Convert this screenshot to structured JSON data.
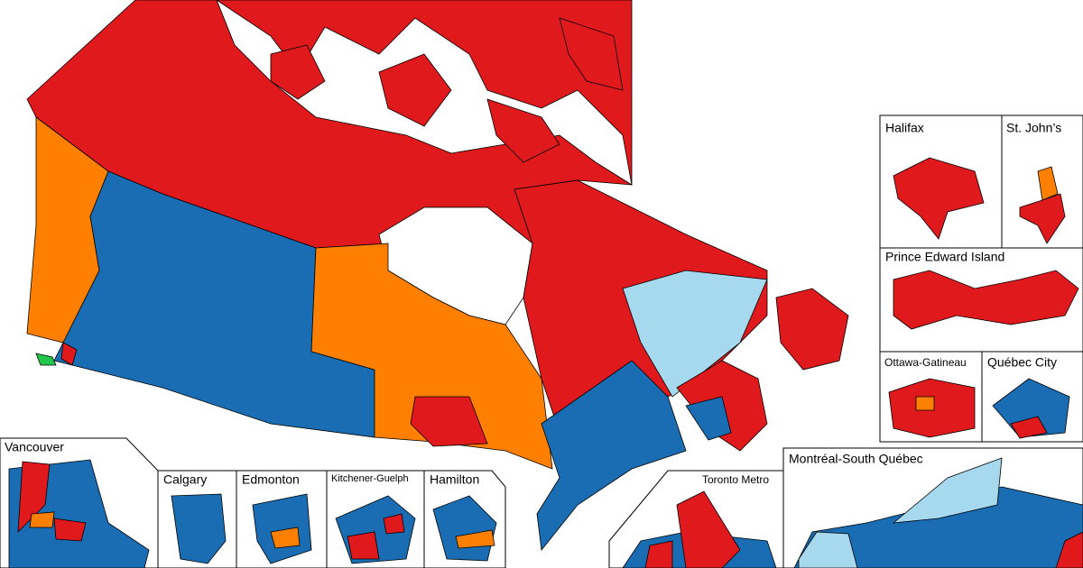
{
  "insets": {
    "vancouver": "Vancouver",
    "calgary": "Calgary",
    "edmonton": "Edmonton",
    "kitchener_guelph": "Kitchener-Guelph",
    "hamilton": "Hamilton",
    "toronto_metro": "Toronto Metro",
    "montreal": "Montréal-South Québec",
    "halifax": "Halifax",
    "st_johns": "St. John’s",
    "pei": "Prince Edward Island",
    "ottawa_gatineau": "Ottawa-Gatineau",
    "quebec_city": "Québec City"
  }
}
